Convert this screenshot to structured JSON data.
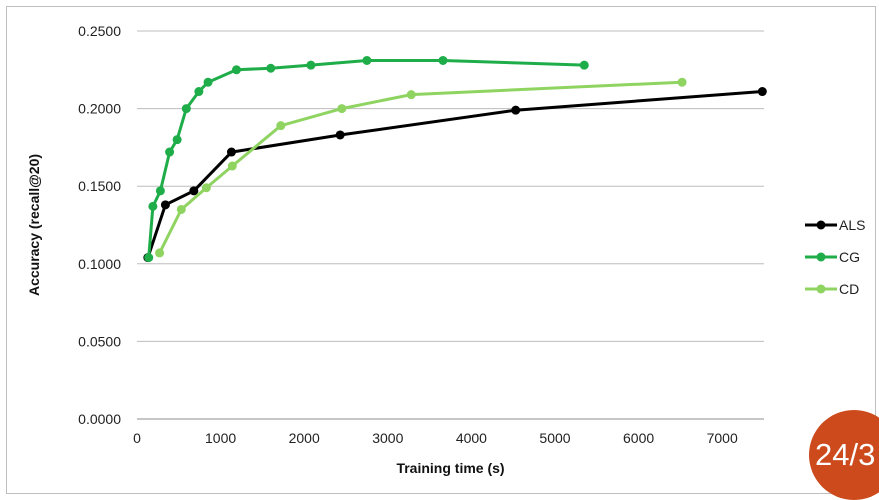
{
  "chart_data": {
    "type": "line",
    "title": "",
    "xlabel": "Training time (s)",
    "ylabel": "Accuracy (recall@20)",
    "xlim": [
      0,
      7500
    ],
    "ylim": [
      0,
      0.25
    ],
    "x_ticks": [
      "0",
      "1000",
      "2000",
      "3000",
      "4000",
      "5000",
      "6000",
      "7000"
    ],
    "y_ticks": [
      "0.0000",
      "0.0500",
      "0.1000",
      "0.1500",
      "0.2000",
      "0.2500"
    ],
    "grid": "horizontal",
    "legend_position": "right",
    "series": [
      {
        "name": "ALS",
        "color": "#000000",
        "points": [
          [
            130,
            0.104
          ],
          [
            340,
            0.138
          ],
          [
            680,
            0.147
          ],
          [
            1130,
            0.172
          ],
          [
            2430,
            0.183
          ],
          [
            4530,
            0.199
          ],
          [
            7480,
            0.211
          ]
        ]
      },
      {
        "name": "CG",
        "color": "#1fad4a",
        "points": [
          [
            140,
            0.104
          ],
          [
            190,
            0.137
          ],
          [
            280,
            0.147
          ],
          [
            390,
            0.172
          ],
          [
            480,
            0.18
          ],
          [
            590,
            0.2
          ],
          [
            740,
            0.211
          ],
          [
            850,
            0.217
          ],
          [
            1190,
            0.225
          ],
          [
            1600,
            0.226
          ],
          [
            2080,
            0.228
          ],
          [
            2750,
            0.231
          ],
          [
            3660,
            0.231
          ],
          [
            5350,
            0.228
          ]
        ]
      },
      {
        "name": "CD",
        "color": "#8fd461",
        "points": [
          [
            270,
            0.107
          ],
          [
            530,
            0.135
          ],
          [
            830,
            0.149
          ],
          [
            1140,
            0.163
          ],
          [
            1720,
            0.189
          ],
          [
            2450,
            0.2
          ],
          [
            3280,
            0.209
          ],
          [
            6520,
            0.217
          ]
        ]
      }
    ]
  },
  "badge": {
    "label": "24/3"
  }
}
